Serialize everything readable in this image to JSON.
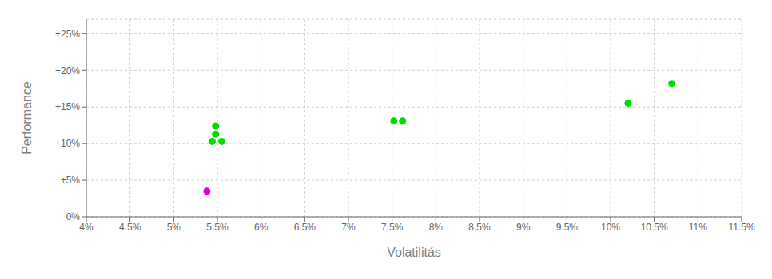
{
  "chart_data": {
    "type": "scatter",
    "xlabel": "Volatilitás",
    "ylabel": "Performance",
    "xlim": [
      0.04,
      0.115
    ],
    "ylim": [
      0,
      0.27
    ],
    "xticks": [
      {
        "value": 0.04,
        "label": "4%"
      },
      {
        "value": 0.045,
        "label": "4.5%"
      },
      {
        "value": 0.05,
        "label": "5%"
      },
      {
        "value": 0.055,
        "label": "5.5%"
      },
      {
        "value": 0.06,
        "label": "6%"
      },
      {
        "value": 0.065,
        "label": "6.5%"
      },
      {
        "value": 0.07,
        "label": "7%"
      },
      {
        "value": 0.075,
        "label": "7.5%"
      },
      {
        "value": 0.08,
        "label": "8%"
      },
      {
        "value": 0.085,
        "label": "8.5%"
      },
      {
        "value": 0.09,
        "label": "9%"
      },
      {
        "value": 0.095,
        "label": "9.5%"
      },
      {
        "value": 0.1,
        "label": "10%"
      },
      {
        "value": 0.105,
        "label": "10.5%"
      },
      {
        "value": 0.11,
        "label": "11%"
      },
      {
        "value": 0.115,
        "label": "11.5%"
      }
    ],
    "yticks": [
      {
        "value": 0,
        "label": "0%"
      },
      {
        "value": 0.05,
        "label": "+5%"
      },
      {
        "value": 0.1,
        "label": "+10%"
      },
      {
        "value": 0.15,
        "label": "+15%"
      },
      {
        "value": 0.2,
        "label": "+20%"
      },
      {
        "value": 0.25,
        "label": "+25%"
      }
    ],
    "grid": true,
    "series": [
      {
        "color": "#00dd00",
        "x": [
          0.0548,
          0.0548,
          0.0544,
          0.0555,
          0.0752,
          0.0762,
          0.102,
          0.107
        ],
        "values": [
          0.124,
          0.113,
          0.103,
          0.103,
          0.131,
          0.131,
          0.155,
          0.182
        ]
      },
      {
        "color": "#dd00dd",
        "x": [
          0.0538
        ],
        "values": [
          0.035
        ]
      }
    ]
  }
}
